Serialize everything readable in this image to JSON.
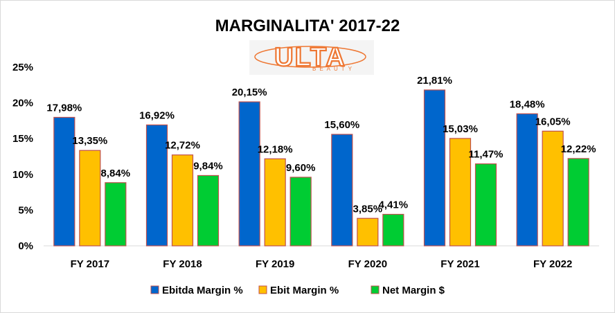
{
  "chart_data": {
    "type": "bar",
    "title": "MARGINALITA' 2017-22",
    "logo_text": "ULTA",
    "logo_subtext": "BEAUTY",
    "categories": [
      "FY 2017",
      "FY 2018",
      "FY 2019",
      "FY 2020",
      "FY 2021",
      "FY 2022"
    ],
    "series": [
      {
        "name": "Ebitda Margin %",
        "color": "#0066cc",
        "values": [
          17.98,
          16.92,
          20.15,
          15.6,
          21.81,
          18.48
        ],
        "labels": [
          "17,98%",
          "16,92%",
          "20,15%",
          "15,60%",
          "21,81%",
          "18,48%"
        ]
      },
      {
        "name": "Ebit Margin %",
        "color": "#ffc000",
        "values": [
          13.35,
          12.72,
          12.18,
          3.85,
          15.03,
          16.05
        ],
        "labels": [
          "13,35%",
          "12,72%",
          "12,18%",
          "3,85%",
          "15,03%",
          "16,05%"
        ]
      },
      {
        "name": "Net Margin $",
        "color": "#00cc33",
        "values": [
          8.84,
          9.84,
          9.6,
          4.41,
          11.47,
          12.22
        ],
        "labels": [
          "8,84%",
          "9,84%",
          "9,60%",
          "4,41%",
          "11,47%",
          "12,22%"
        ]
      }
    ],
    "ylim": [
      0,
      25
    ],
    "yticks": [
      0,
      5,
      10,
      15,
      20,
      25
    ],
    "ytick_labels": [
      "0%",
      "5%",
      "10%",
      "15%",
      "20%",
      "25%"
    ],
    "xlabel": "",
    "ylabel": "",
    "grid": false,
    "legend": "bottom"
  }
}
